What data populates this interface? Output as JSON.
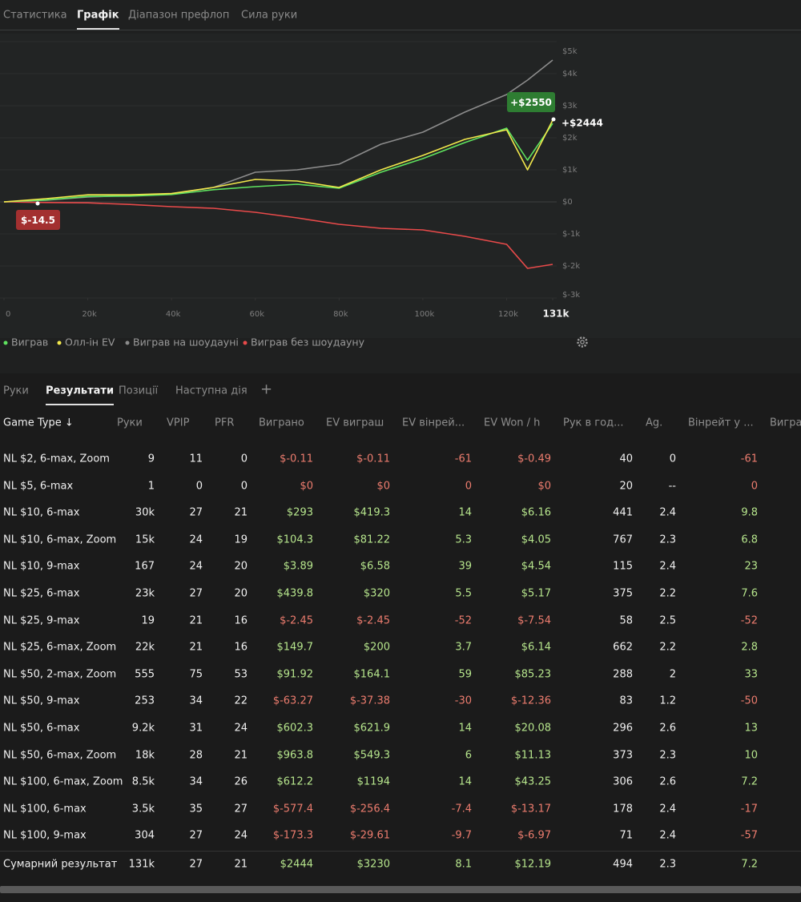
{
  "top_tabs": [
    "Статистика",
    "Графік",
    "Діапазон префлоп",
    "Сила руки"
  ],
  "chart_data": {
    "type": "line",
    "x": [
      0,
      10000,
      20000,
      30000,
      40000,
      50000,
      60000,
      70000,
      80000,
      90000,
      100000,
      110000,
      120000,
      125000,
      131000
    ],
    "series": [
      {
        "name": "Виграв",
        "color": "#5fe35f",
        "values": [
          0,
          60,
          170,
          180,
          230,
          380,
          475,
          550,
          425,
          925,
          1350,
          1850,
          2300,
          1300,
          2444
        ]
      },
      {
        "name": "Олл-ін EV",
        "color": "#f2e84c",
        "values": [
          0,
          100,
          220,
          220,
          260,
          450,
          700,
          650,
          450,
          1000,
          1450,
          1950,
          2250,
          1000,
          2550
        ]
      },
      {
        "name": "Виграв на шоудауні",
        "color": "#8c8c8c",
        "values": [
          0,
          50,
          150,
          200,
          250,
          450,
          925,
          1000,
          1175,
          1800,
          2175,
          2800,
          3350,
          3800,
          4425
        ]
      },
      {
        "name": "Виграв без шоудауну",
        "color": "#e84a4a",
        "values": [
          0,
          -20,
          -30,
          -80,
          -150,
          -200,
          -325,
          -500,
          -700,
          -825,
          -875,
          -1075,
          -1325,
          -2075,
          -1950
        ]
      }
    ],
    "xlim": [
      0,
      131000
    ],
    "xticks": [
      0,
      {
        "value": 20000,
        "label": "20k"
      },
      {
        "value": 40000,
        "label": "40k"
      },
      {
        "value": 60000,
        "label": "60k"
      },
      {
        "value": 80000,
        "label": "80k"
      },
      {
        "value": 100000,
        "label": "100k"
      },
      {
        "value": 120000,
        "label": "120k"
      },
      {
        "value": 131000,
        "label": "131k"
      }
    ],
    "ylim": [
      -3000,
      5000
    ],
    "yticks": [
      {
        "value": -3000,
        "label": "$-3k"
      },
      {
        "value": -2000,
        "label": "$-2k"
      },
      {
        "value": -1000,
        "label": "$-1k"
      },
      {
        "value": 0,
        "label": "$0"
      },
      {
        "value": 1000,
        "label": "$1k"
      },
      {
        "value": 2000,
        "label": "$2k"
      },
      {
        "value": 3000,
        "label": "$3k"
      },
      {
        "value": 4000,
        "label": "$4k"
      },
      {
        "value": 5000,
        "label": "$5k"
      }
    ],
    "grid": true,
    "annotations": [
      {
        "text": "+$2550",
        "color": "#2e7d32"
      },
      {
        "text": "+$2444"
      },
      {
        "text": "$-14.5",
        "color": "#a33030"
      }
    ]
  },
  "bottom_tabs": [
    "Руки",
    "Результати",
    "Позиції",
    "Наступна дія",
    "+"
  ],
  "table": {
    "columns": [
      "Game Type ↓",
      "Руки",
      "VPIP",
      "PFR",
      "Виграно",
      "EV виграш",
      "EV вінрей...",
      "EV Won / h",
      "Рук в год...",
      "Ag.",
      "Вінрейт у ...",
      "Виграш"
    ],
    "rows": [
      [
        "NL $2, 6-max, Zoom",
        "9",
        "11",
        "0",
        "$-0.11",
        "$-0.11",
        "-61",
        "$-0.49",
        "40",
        "0",
        "-61"
      ],
      [
        "NL $5, 6-max",
        "1",
        "0",
        "0",
        "$0",
        "$0",
        "0",
        "$0",
        "20",
        "--",
        "0"
      ],
      [
        "NL $10, 6-max",
        "30k",
        "27",
        "21",
        "$293",
        "$419.3",
        "14",
        "$6.16",
        "441",
        "2.4",
        "9.8"
      ],
      [
        "NL $10, 6-max, Zoom",
        "15k",
        "24",
        "19",
        "$104.3",
        "$81.22",
        "5.3",
        "$4.05",
        "767",
        "2.3",
        "6.8"
      ],
      [
        "NL $10, 9-max",
        "167",
        "24",
        "20",
        "$3.89",
        "$6.58",
        "39",
        "$4.54",
        "115",
        "2.4",
        "23"
      ],
      [
        "NL $25, 6-max",
        "23k",
        "27",
        "20",
        "$439.8",
        "$320",
        "5.5",
        "$5.17",
        "375",
        "2.2",
        "7.6"
      ],
      [
        "NL $25, 9-max",
        "19",
        "21",
        "16",
        "$-2.45",
        "$-2.45",
        "-52",
        "$-7.54",
        "58",
        "2.5",
        "-52"
      ],
      [
        "NL $25, 6-max, Zoom",
        "22k",
        "21",
        "16",
        "$149.7",
        "$200",
        "3.7",
        "$6.14",
        "662",
        "2.2",
        "2.8"
      ],
      [
        "NL $50, 2-max, Zoom",
        "555",
        "75",
        "53",
        "$91.92",
        "$164.1",
        "59",
        "$85.23",
        "288",
        "2",
        "33"
      ],
      [
        "NL $50, 9-max",
        "253",
        "34",
        "22",
        "$-63.27",
        "$-37.38",
        "-30",
        "$-12.36",
        "83",
        "1.2",
        "-50"
      ],
      [
        "NL $50, 6-max",
        "9.2k",
        "31",
        "24",
        "$602.3",
        "$621.9",
        "14",
        "$20.08",
        "296",
        "2.6",
        "13"
      ],
      [
        "NL $50, 6-max, Zoom",
        "18k",
        "28",
        "21",
        "$963.8",
        "$549.3",
        "6",
        "$11.13",
        "373",
        "2.3",
        "10"
      ],
      [
        "NL $100, 6-max, Zoom",
        "8.5k",
        "34",
        "26",
        "$612.2",
        "$1194",
        "14",
        "$43.25",
        "306",
        "2.6",
        "7.2"
      ],
      [
        "NL $100, 6-max",
        "3.5k",
        "35",
        "27",
        "$-577.4",
        "$-256.4",
        "-7.4",
        "$-13.17",
        "178",
        "2.4",
        "-17"
      ],
      [
        "NL $100, 9-max",
        "304",
        "27",
        "24",
        "$-173.3",
        "$-29.61",
        "-9.7",
        "$-6.97",
        "71",
        "2.4",
        "-57"
      ]
    ],
    "total": [
      "Сумарний результат",
      "131k",
      "27",
      "21",
      "$2444",
      "$3230",
      "8.1",
      "$12.19",
      "494",
      "2.3",
      "7.2"
    ]
  }
}
